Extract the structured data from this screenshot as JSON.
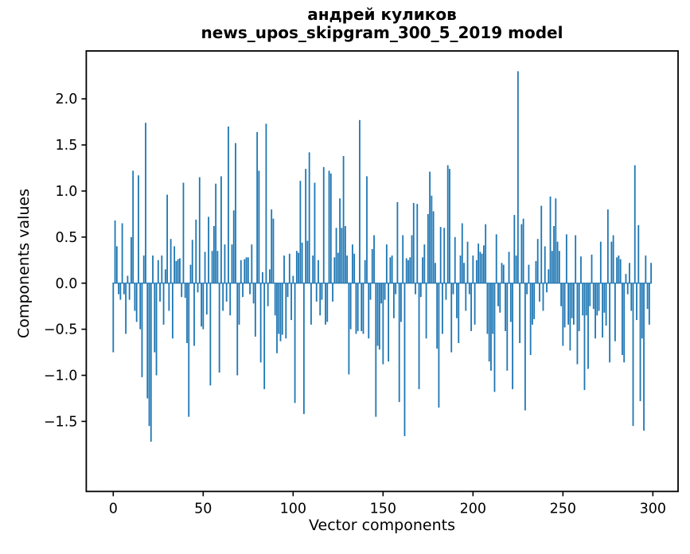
{
  "figure": {
    "title_line1": "андрей куликов",
    "title_line2": "news_upos_skipgram_300_5_2019 model"
  },
  "chart_data": {
    "type": "bar",
    "title": "андрей куликов\nnews_upos_skipgram_300_5_2019 model",
    "xlabel": "Vector components",
    "ylabel": "Components values",
    "legend": null,
    "grid": false,
    "bar_color": "#1f77b4",
    "axis_color": "#000000",
    "xlim": [
      -15,
      314
    ],
    "ylim": [
      -2.26,
      2.52
    ],
    "xticks": {
      "values": [
        0,
        50,
        100,
        150,
        200,
        250,
        300
      ],
      "labels": [
        "0",
        "50",
        "100",
        "150",
        "200",
        "250",
        "300"
      ]
    },
    "yticks": {
      "values": [
        2.0,
        1.5,
        1.0,
        0.5,
        0.0,
        -0.5,
        -1.0,
        -1.5
      ],
      "labels": [
        "2.0",
        "1.5",
        "1.0",
        "0.5",
        "0.0",
        "−0.5",
        "−1.0",
        "−1.5"
      ]
    },
    "x_start": 0,
    "bar_data_width": 0.8,
    "values": [
      -0.75,
      0.68,
      0.4,
      -0.12,
      -0.18,
      0.65,
      -0.12,
      -0.55,
      0.08,
      -0.18,
      0.5,
      1.22,
      -0.3,
      -0.42,
      1.17,
      -0.5,
      -1.02,
      0.3,
      1.74,
      -1.25,
      -1.55,
      -1.72,
      0.3,
      -0.75,
      -1.0,
      0.25,
      -0.2,
      0.3,
      -0.45,
      0.15,
      0.96,
      -0.3,
      0.48,
      -0.6,
      0.4,
      0.24,
      0.26,
      0.27,
      -0.15,
      1.09,
      -0.16,
      -0.65,
      -1.45,
      0.2,
      0.47,
      -0.68,
      0.69,
      -0.1,
      1.15,
      -0.47,
      -0.5,
      0.34,
      -0.34,
      0.72,
      -1.11,
      0.35,
      0.62,
      1.08,
      0.35,
      -0.97,
      1.16,
      -0.3,
      0.42,
      -0.2,
      1.7,
      -0.35,
      0.42,
      0.79,
      1.52,
      -1.0,
      -0.45,
      0.25,
      -0.15,
      0.26,
      0.28,
      0.28,
      -0.12,
      0.42,
      -0.22,
      -0.58,
      1.64,
      1.22,
      -0.86,
      0.12,
      -1.15,
      1.73,
      -0.25,
      0.15,
      0.8,
      0.7,
      -0.35,
      -0.76,
      -0.55,
      -0.63,
      -0.56,
      0.3,
      -0.6,
      -0.15,
      0.32,
      -0.4,
      0.08,
      -1.3,
      0.35,
      0.33,
      1.11,
      0.44,
      -1.42,
      1.24,
      0.46,
      1.42,
      -0.45,
      0.3,
      1.09,
      -0.2,
      0.25,
      -0.35,
      -0.18,
      1.26,
      -0.45,
      -0.42,
      1.22,
      1.19,
      -0.2,
      0.28,
      0.6,
      0.33,
      0.92,
      0.6,
      1.38,
      0.62,
      0.3,
      -0.99,
      -0.5,
      0.42,
      0.32,
      -0.55,
      -0.52,
      1.77,
      -0.52,
      -0.55,
      0.25,
      1.16,
      -0.6,
      -0.18,
      0.37,
      0.52,
      -1.45,
      -0.68,
      -0.72,
      -0.22,
      -0.88,
      -0.18,
      0.42,
      -0.85,
      0.28,
      0.3,
      -0.38,
      -0.12,
      0.88,
      -1.29,
      -0.42,
      0.52,
      -1.66,
      0.27,
      0.25,
      0.28,
      0.52,
      0.87,
      -0.12,
      0.86,
      -1.15,
      -0.15,
      0.28,
      0.42,
      -0.6,
      0.75,
      1.21,
      0.95,
      0.78,
      0.22,
      -0.71,
      -1.35,
      0.61,
      -0.55,
      0.6,
      -0.18,
      1.28,
      1.24,
      -0.75,
      -0.12,
      0.5,
      -0.38,
      -0.65,
      0.3,
      0.65,
      0.22,
      -0.3,
      0.45,
      -0.12,
      -0.52,
      0.3,
      -0.45,
      0.25,
      0.43,
      0.34,
      0.32,
      0.41,
      0.64,
      -0.55,
      -0.85,
      -0.95,
      -0.55,
      -1.18,
      0.53,
      -0.25,
      -0.32,
      0.22,
      0.2,
      -0.52,
      -0.95,
      0.34,
      -0.42,
      -1.15,
      0.74,
      0.3,
      2.3,
      -0.65,
      0.64,
      0.7,
      -1.38,
      -0.12,
      0.2,
      -0.78,
      -0.45,
      -0.39,
      0.24,
      0.48,
      -0.2,
      0.84,
      -0.3,
      0.4,
      -0.1,
      0.15,
      0.94,
      0.35,
      0.62,
      0.92,
      0.45,
      0.35,
      -0.25,
      -0.68,
      -0.48,
      0.53,
      -0.45,
      -0.73,
      -0.38,
      -0.45,
      0.52,
      -0.88,
      -0.52,
      0.29,
      -0.35,
      -1.16,
      -0.35,
      -0.93,
      -0.25,
      0.31,
      -0.28,
      -0.6,
      -0.35,
      -0.3,
      0.45,
      -0.59,
      -0.32,
      -0.46,
      0.8,
      -0.86,
      0.45,
      0.52,
      -0.63,
      0.28,
      0.3,
      0.26,
      -0.78,
      -0.86,
      0.1,
      -0.12,
      0.22,
      -0.3,
      -1.55,
      1.28,
      -0.4,
      0.63,
      -1.28,
      -0.6,
      -1.6,
      0.3,
      -0.28,
      -0.45,
      0.22
    ]
  }
}
